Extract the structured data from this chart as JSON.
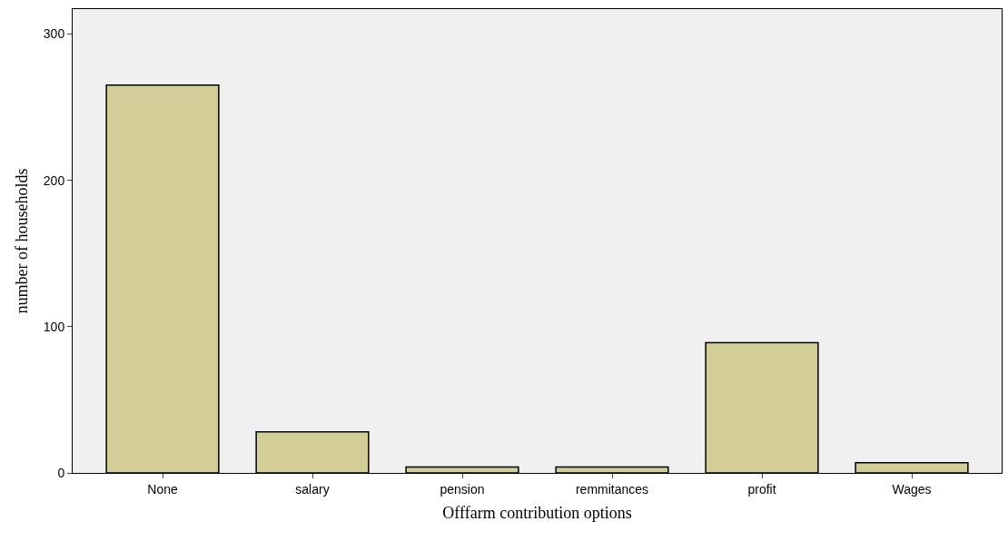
{
  "chart_data": {
    "type": "bar",
    "xlabel": "Offfarm contribution options",
    "ylabel": "number of households",
    "categories": [
      "None",
      "salary",
      "pension",
      "remmitances",
      "profit",
      "Wages"
    ],
    "values": [
      265,
      28,
      4,
      4,
      89,
      7
    ],
    "color": "#d3ce97",
    "ylim": [
      0,
      317
    ],
    "yticks": [
      0,
      100,
      200,
      300
    ],
    "grid": false,
    "legend": false
  }
}
